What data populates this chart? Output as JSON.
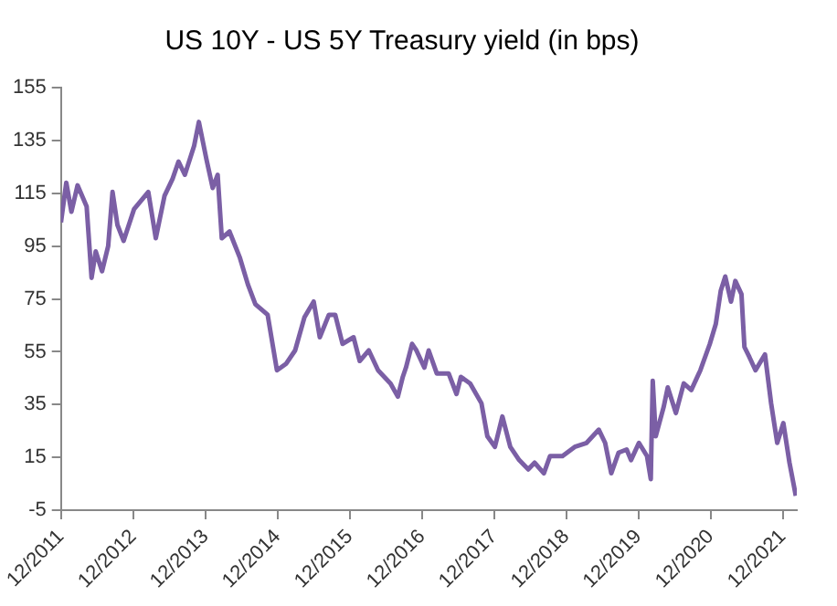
{
  "chart_data": {
    "type": "line",
    "title": "US 10Y - US 5Y Treasury yield (in bps)",
    "x": [
      "2011-12-01",
      "2011-12-28",
      "2012-01-23",
      "2012-02-23",
      "2012-04-09",
      "2012-05-04",
      "2012-05-25",
      "2012-06-26",
      "2012-07-27",
      "2012-08-18",
      "2012-09-12",
      "2012-10-13",
      "2012-12-05",
      "2013-02-15",
      "2013-03-25",
      "2013-05-08",
      "2013-06-18",
      "2013-07-18",
      "2013-08-19",
      "2013-10-05",
      "2013-10-29",
      "2013-12-06",
      "2014-01-07",
      "2014-02-01",
      "2014-02-22",
      "2014-04-02",
      "2014-05-25",
      "2014-07-04",
      "2014-08-11",
      "2014-10-12",
      "2014-11-28",
      "2015-01-14",
      "2015-02-28",
      "2015-04-16",
      "2015-06-02",
      "2015-07-03",
      "2015-08-18",
      "2015-09-19",
      "2015-10-26",
      "2015-12-21",
      "2016-01-21",
      "2016-03-07",
      "2016-04-23",
      "2016-06-25",
      "2016-08-01",
      "2016-08-26",
      "2016-09-11",
      "2016-10-12",
      "2016-11-03",
      "2016-12-13",
      "2017-01-04",
      "2017-02-14",
      "2017-04-15",
      "2017-05-25",
      "2017-06-16",
      "2017-08-02",
      "2017-09-28",
      "2017-10-28",
      "2017-12-05",
      "2018-01-12",
      "2018-02-21",
      "2018-04-07",
      "2018-05-23",
      "2018-06-24",
      "2018-08-10",
      "2018-09-10",
      "2018-11-12",
      "2019-01-13",
      "2019-03-14",
      "2019-05-15",
      "2019-06-16",
      "2019-07-17",
      "2019-08-23",
      "2019-10-03",
      "2019-10-25",
      "2019-12-04",
      "2020-01-14",
      "2020-02-02",
      "2020-02-12",
      "2020-02-27",
      "2020-04-07",
      "2020-04-28",
      "2020-06-08",
      "2020-07-18",
      "2020-08-25",
      "2020-10-10",
      "2020-11-27",
      "2020-12-27",
      "2021-01-21",
      "2021-02-13",
      "2021-03-14",
      "2021-04-05",
      "2021-05-06",
      "2021-05-21",
      "2021-06-15",
      "2021-07-16",
      "2021-09-02",
      "2021-10-03",
      "2021-11-03",
      "2021-12-04",
      "2022-01-04",
      "2022-02-05"
    ],
    "series": [
      {
        "color": "#7b5fa5",
        "values": [
          104,
          119,
          108,
          118,
          110,
          83,
          93,
          85.5,
          95,
          115.5,
          103,
          97,
          109,
          115.5,
          98,
          114,
          120.5,
          127,
          122,
          133,
          142,
          128,
          117,
          122,
          98,
          100.5,
          90.5,
          80.5,
          73,
          69,
          48,
          50.5,
          55.5,
          68,
          74,
          60.5,
          69,
          69,
          58,
          60.5,
          51.5,
          55.5,
          48,
          43,
          38,
          45.5,
          49,
          58,
          55.5,
          49,
          55.5,
          46.8,
          46.8,
          39,
          45.5,
          43,
          35.5,
          23,
          19,
          30.5,
          19,
          14,
          10.5,
          13,
          9,
          15.5,
          15.5,
          19,
          20.5,
          25.5,
          20.5,
          9,
          16.8,
          18,
          14,
          20.5,
          15.5,
          6.8,
          44,
          23,
          34,
          41.5,
          31.8,
          43,
          40.5,
          48,
          58,
          65.5,
          78,
          83.5,
          74,
          81.8,
          76.8,
          56.8,
          53,
          48,
          54,
          35.5,
          20.5,
          28,
          13,
          0.5
        ]
      }
    ],
    "xlim": [
      "2011-12-01",
      "2022-02-10"
    ],
    "xticks": [
      {
        "value": "2011-12-01",
        "label": "12/2011"
      },
      {
        "value": "2012-12-01",
        "label": "12/2012"
      },
      {
        "value": "2013-12-01",
        "label": "12/2013"
      },
      {
        "value": "2014-12-01",
        "label": "12/2014"
      },
      {
        "value": "2015-12-01",
        "label": "12/2015"
      },
      {
        "value": "2016-12-01",
        "label": "12/2016"
      },
      {
        "value": "2017-12-01",
        "label": "12/2017"
      },
      {
        "value": "2018-12-01",
        "label": "12/2018"
      },
      {
        "value": "2019-12-01",
        "label": "12/2019"
      },
      {
        "value": "2020-12-01",
        "label": "12/2020"
      },
      {
        "value": "2021-12-01",
        "label": "12/2021"
      }
    ],
    "ylim": [
      -5,
      155
    ],
    "yticks": [
      -5,
      15,
      35,
      55,
      75,
      95,
      115,
      135,
      155
    ],
    "grid": false,
    "legend": false,
    "marker": "none",
    "line_style": "solid"
  }
}
